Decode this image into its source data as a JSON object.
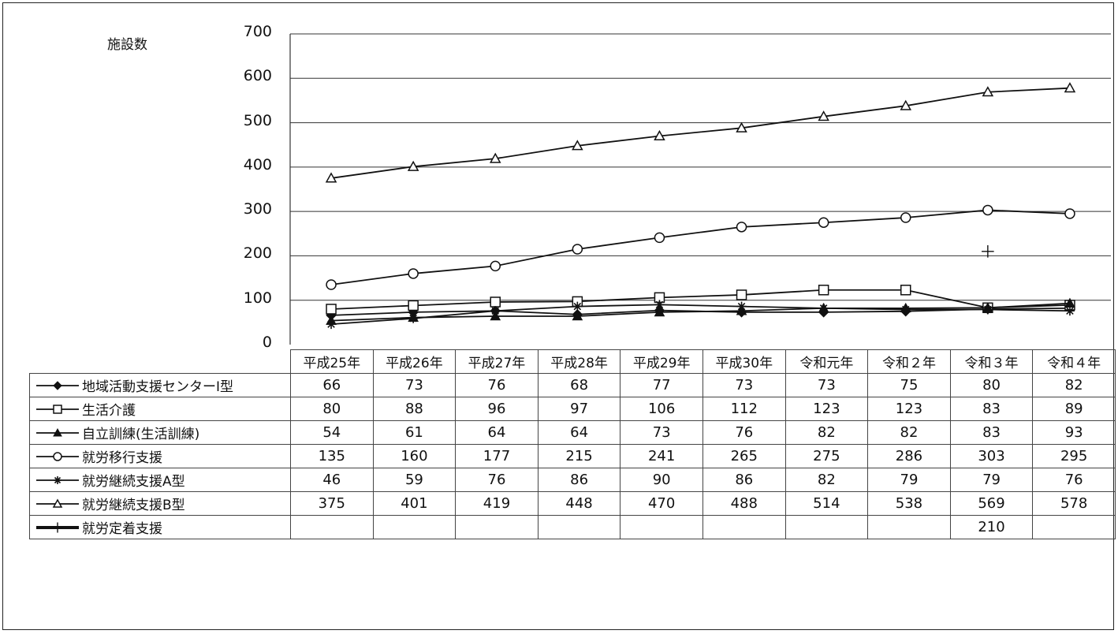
{
  "chart_data": {
    "type": "line",
    "ylabel": "施設数",
    "ylim": [
      0,
      700
    ],
    "yticks": [
      "0",
      "100",
      "200",
      "300",
      "400",
      "500",
      "600",
      "700"
    ],
    "categories": [
      "平成25年",
      "平成26年",
      "平成27年",
      "平成28年",
      "平成29年",
      "平成30年",
      "令和元年",
      "令和２年",
      "令和３年",
      "令和４年"
    ],
    "grid": true,
    "series": [
      {
        "name": "地域活動支援センターⅠ型",
        "marker": "diamond-filled",
        "values": [
          66,
          73,
          76,
          68,
          77,
          73,
          73,
          75,
          80,
          82
        ]
      },
      {
        "name": "生活介護",
        "marker": "square-open",
        "values": [
          80,
          88,
          96,
          97,
          106,
          112,
          123,
          123,
          83,
          89
        ]
      },
      {
        "name": "自立訓練(生活訓練)",
        "marker": "triangle-filled",
        "values": [
          54,
          61,
          64,
          64,
          73,
          76,
          82,
          82,
          83,
          93
        ]
      },
      {
        "name": "就労移行支援",
        "marker": "circle-open",
        "values": [
          135,
          160,
          177,
          215,
          241,
          265,
          275,
          286,
          303,
          295
        ]
      },
      {
        "name": "就労継続支援A型",
        "marker": "asterisk",
        "values": [
          46,
          59,
          76,
          86,
          90,
          86,
          82,
          79,
          79,
          76
        ]
      },
      {
        "name": "就労継続支援B型",
        "marker": "triangle-open",
        "values": [
          375,
          401,
          419,
          448,
          470,
          488,
          514,
          538,
          569,
          578
        ]
      },
      {
        "name": "就労定着支援",
        "marker": "plus",
        "values": [
          null,
          null,
          null,
          null,
          null,
          null,
          null,
          null,
          210,
          null
        ]
      }
    ]
  }
}
